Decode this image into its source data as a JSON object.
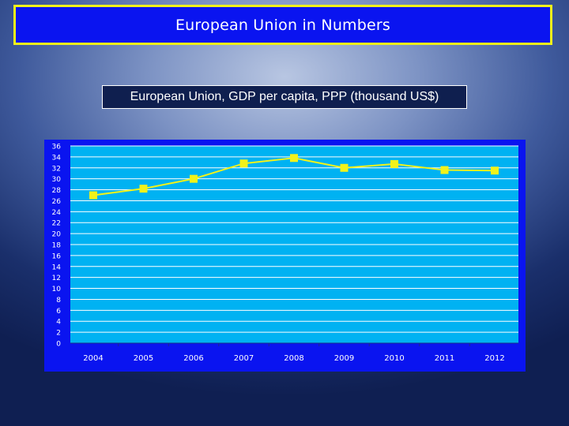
{
  "header": {
    "title": "European Union in Numbers"
  },
  "chart_data": {
    "type": "line",
    "title": "European Union, GDP  per capita, PPP (thousand US$)",
    "categories": [
      "2004",
      "2005",
      "2006",
      "2007",
      "2008",
      "2009",
      "2010",
      "2011",
      "2012"
    ],
    "series": [
      {
        "values": [
          27.0,
          28.2,
          30.0,
          32.8,
          33.8,
          32.0,
          32.7,
          31.6,
          31.5
        ]
      }
    ],
    "ylim": [
      0,
      36
    ],
    "ytick_step": 2,
    "grid": true,
    "xlabel": "",
    "ylabel": "",
    "colors": {
      "frame": "#0a14f0",
      "plot": "#00b2f2",
      "line": "#f2f21a",
      "marker": "#f2f21a",
      "grid": "#ffffff",
      "tick_text": "#ffffff"
    }
  }
}
